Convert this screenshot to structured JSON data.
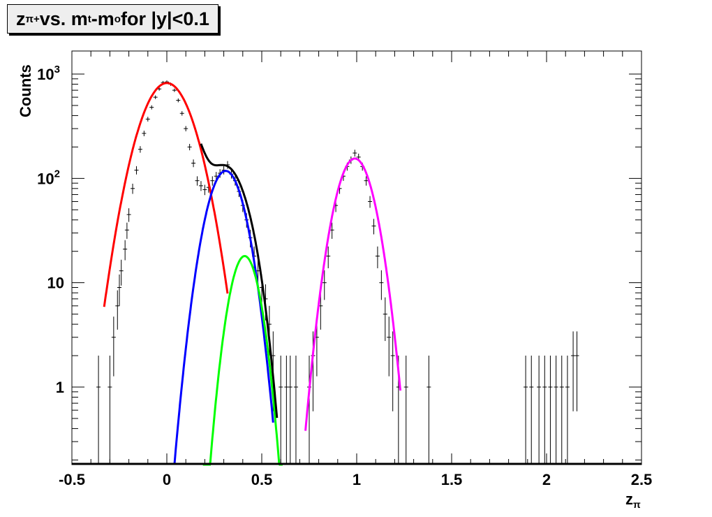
{
  "chart_data": {
    "type": "scatter",
    "title": {
      "base": "z",
      "sub": "π+",
      "mid": " vs. m",
      "sub2": "t",
      "mid2": "-m",
      "sub3": "o",
      "tail": " for |y|<0.1"
    },
    "xlabel": "z",
    "xlabel_sub": "π",
    "ylabel": "Counts",
    "xlim": [
      -0.5,
      2.5
    ],
    "ylim": [
      0.18,
      1600
    ],
    "yscale": "log",
    "grid": false,
    "x_ticks": [
      {
        "value": -0.5,
        "label": "-0.5"
      },
      {
        "value": 0,
        "label": "0"
      },
      {
        "value": 0.5,
        "label": "0.5"
      },
      {
        "value": 1,
        "label": "1"
      },
      {
        "value": 1.5,
        "label": "1.5"
      },
      {
        "value": 2,
        "label": "2"
      },
      {
        "value": 2.5,
        "label": "2.5"
      }
    ],
    "y_ticks": [
      {
        "value": 1,
        "label": "1"
      },
      {
        "value": 10,
        "label": "10"
      },
      {
        "value": 100,
        "label": "10",
        "exp": "2"
      },
      {
        "value": 1000,
        "label": "10",
        "exp": "3"
      }
    ],
    "points": [
      {
        "x": -0.36,
        "y": 1
      },
      {
        "x": -0.3,
        "y": 1
      },
      {
        "x": -0.28,
        "y": 3
      },
      {
        "x": -0.26,
        "y": 6
      },
      {
        "x": -0.25,
        "y": 9
      },
      {
        "x": -0.24,
        "y": 13
      },
      {
        "x": -0.22,
        "y": 21
      },
      {
        "x": -0.21,
        "y": 32
      },
      {
        "x": -0.2,
        "y": 45
      },
      {
        "x": -0.18,
        "y": 80
      },
      {
        "x": -0.16,
        "y": 120
      },
      {
        "x": -0.14,
        "y": 190
      },
      {
        "x": -0.12,
        "y": 270
      },
      {
        "x": -0.1,
        "y": 370
      },
      {
        "x": -0.08,
        "y": 480
      },
      {
        "x": -0.06,
        "y": 600
      },
      {
        "x": -0.04,
        "y": 720
      },
      {
        "x": -0.02,
        "y": 830
      },
      {
        "x": 0,
        "y": 840
      },
      {
        "x": 0.02,
        "y": 800
      },
      {
        "x": 0.04,
        "y": 700
      },
      {
        "x": 0.06,
        "y": 560
      },
      {
        "x": 0.08,
        "y": 420
      },
      {
        "x": 0.1,
        "y": 300
      },
      {
        "x": 0.12,
        "y": 200
      },
      {
        "x": 0.14,
        "y": 140
      },
      {
        "x": 0.16,
        "y": 95
      },
      {
        "x": 0.18,
        "y": 85
      },
      {
        "x": 0.2,
        "y": 78
      },
      {
        "x": 0.22,
        "y": 82
      },
      {
        "x": 0.24,
        "y": 95
      },
      {
        "x": 0.26,
        "y": 105
      },
      {
        "x": 0.28,
        "y": 112
      },
      {
        "x": 0.3,
        "y": 120
      },
      {
        "x": 0.32,
        "y": 135
      },
      {
        "x": 0.34,
        "y": 110
      },
      {
        "x": 0.36,
        "y": 95
      },
      {
        "x": 0.38,
        "y": 75
      },
      {
        "x": 0.4,
        "y": 55
      },
      {
        "x": 0.42,
        "y": 40
      },
      {
        "x": 0.44,
        "y": 27
      },
      {
        "x": 0.46,
        "y": 18
      },
      {
        "x": 0.48,
        "y": 13
      },
      {
        "x": 0.5,
        "y": 9
      },
      {
        "x": 0.52,
        "y": 7
      },
      {
        "x": 0.54,
        "y": 4
      },
      {
        "x": 0.56,
        "y": 2
      },
      {
        "x": 0.6,
        "y": 1
      },
      {
        "x": 0.63,
        "y": 1
      },
      {
        "x": 0.65,
        "y": 1
      },
      {
        "x": 0.68,
        "y": 1
      },
      {
        "x": 0.75,
        "y": 1
      },
      {
        "x": 0.77,
        "y": 2
      },
      {
        "x": 0.79,
        "y": 3
      },
      {
        "x": 0.81,
        "y": 6
      },
      {
        "x": 0.83,
        "y": 10
      },
      {
        "x": 0.85,
        "y": 18
      },
      {
        "x": 0.87,
        "y": 32
      },
      {
        "x": 0.89,
        "y": 55
      },
      {
        "x": 0.91,
        "y": 80
      },
      {
        "x": 0.93,
        "y": 105
      },
      {
        "x": 0.95,
        "y": 130
      },
      {
        "x": 0.97,
        "y": 150
      },
      {
        "x": 0.99,
        "y": 175
      },
      {
        "x": 1.01,
        "y": 160
      },
      {
        "x": 1.03,
        "y": 130
      },
      {
        "x": 1.05,
        "y": 95
      },
      {
        "x": 1.07,
        "y": 60
      },
      {
        "x": 1.09,
        "y": 35
      },
      {
        "x": 1.11,
        "y": 18
      },
      {
        "x": 1.13,
        "y": 10
      },
      {
        "x": 1.15,
        "y": 5
      },
      {
        "x": 1.17,
        "y": 3
      },
      {
        "x": 1.19,
        "y": 2
      },
      {
        "x": 1.22,
        "y": 1
      },
      {
        "x": 1.26,
        "y": 1
      },
      {
        "x": 1.38,
        "y": 1
      },
      {
        "x": 1.89,
        "y": 1
      },
      {
        "x": 1.92,
        "y": 1
      },
      {
        "x": 1.96,
        "y": 1
      },
      {
        "x": 1.99,
        "y": 1
      },
      {
        "x": 2.02,
        "y": 1
      },
      {
        "x": 2.05,
        "y": 1
      },
      {
        "x": 2.08,
        "y": 1
      },
      {
        "x": 2.11,
        "y": 1
      },
      {
        "x": 2.14,
        "y": 2
      },
      {
        "x": 2.16,
        "y": 2
      }
    ],
    "curves": [
      {
        "color": "#ff0000",
        "model": {
          "a": 820,
          "mu": 0.0,
          "sigma": 0.105
        },
        "range": [
          -0.33,
          0.32
        ]
      },
      {
        "color": "#0000ff",
        "model": {
          "a": 118,
          "mu": 0.31,
          "sigma": 0.075
        },
        "range": [
          0.04,
          0.56
        ]
      },
      {
        "color": "#00ff00",
        "model": {
          "a": 18,
          "mu": 0.41,
          "sigma": 0.06
        },
        "range": [
          0.19,
          0.61
        ]
      },
      {
        "color": "#ff00ff",
        "model": {
          "a": 155,
          "mu": 0.99,
          "sigma": 0.075
        },
        "range": [
          0.73,
          1.23
        ]
      },
      {
        "color": "#000000",
        "model": "sum",
        "range": [
          0.18,
          0.58
        ]
      }
    ]
  }
}
